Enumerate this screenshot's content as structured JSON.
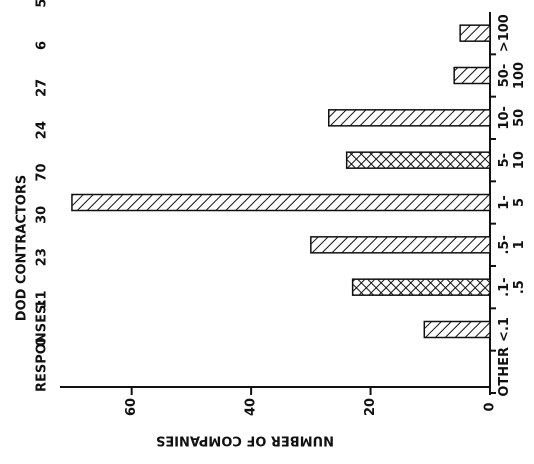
{
  "chart_data": {
    "type": "bar",
    "orientation": "rotated-horizontal",
    "title": "DOD CONTRACTORS",
    "responses_label": "RESPONSES:",
    "categories": [
      "OTHER",
      "<.1",
      ".1- .5",
      ".5- 1",
      "1- 5",
      "5- 10",
      "10- 50",
      "50- 100",
      ">100"
    ],
    "values": [
      0,
      11,
      23,
      30,
      70,
      24,
      27,
      6,
      5
    ],
    "hatches": [
      "diagonal",
      "diagonal",
      "cross",
      "diagonal",
      "diagonal",
      "cross",
      "diagonal",
      "diagonal",
      "diagonal"
    ],
    "color": "#111111",
    "value_axis_label": "NUMBER OF COMPANIES",
    "ylim": [
      0,
      72
    ],
    "yticks": [
      0,
      20,
      40,
      60
    ],
    "grid": false
  }
}
